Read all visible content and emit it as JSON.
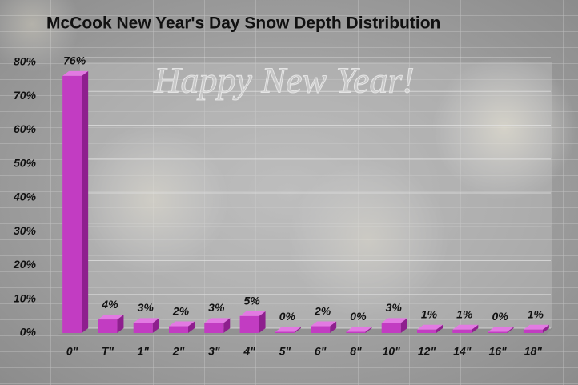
{
  "chart_data": {
    "type": "bar",
    "title": "McCook New Year's Day Snow Depth Distribution",
    "annotations": [
      "Happy New Year!"
    ],
    "categories": [
      "0\"",
      "T\"",
      "1\"",
      "2\"",
      "3\"",
      "4\"",
      "5\"",
      "6\"",
      "8\"",
      "10\"",
      "12\"",
      "14\"",
      "16\"",
      "18\""
    ],
    "values": [
      76,
      4,
      3,
      2,
      3,
      5,
      0,
      2,
      0,
      3,
      1,
      1,
      0,
      1
    ],
    "value_labels": [
      "76%",
      "4%",
      "3%",
      "2%",
      "3%",
      "5%",
      "0%",
      "2%",
      "0%",
      "3%",
      "1%",
      "1%",
      "0%",
      "1%"
    ],
    "color": "#c23cc2",
    "ylim": [
      0,
      80
    ],
    "yticks": [
      {
        "value": 0,
        "label": "0%"
      },
      {
        "value": 10,
        "label": "10%"
      },
      {
        "value": 20,
        "label": "20%"
      },
      {
        "value": 30,
        "label": "30%"
      },
      {
        "value": 40,
        "label": "40%"
      },
      {
        "value": 50,
        "label": "50%"
      },
      {
        "value": 60,
        "label": "60%"
      },
      {
        "value": 70,
        "label": "70%"
      },
      {
        "value": 80,
        "label": "80%"
      }
    ],
    "grid": true
  }
}
